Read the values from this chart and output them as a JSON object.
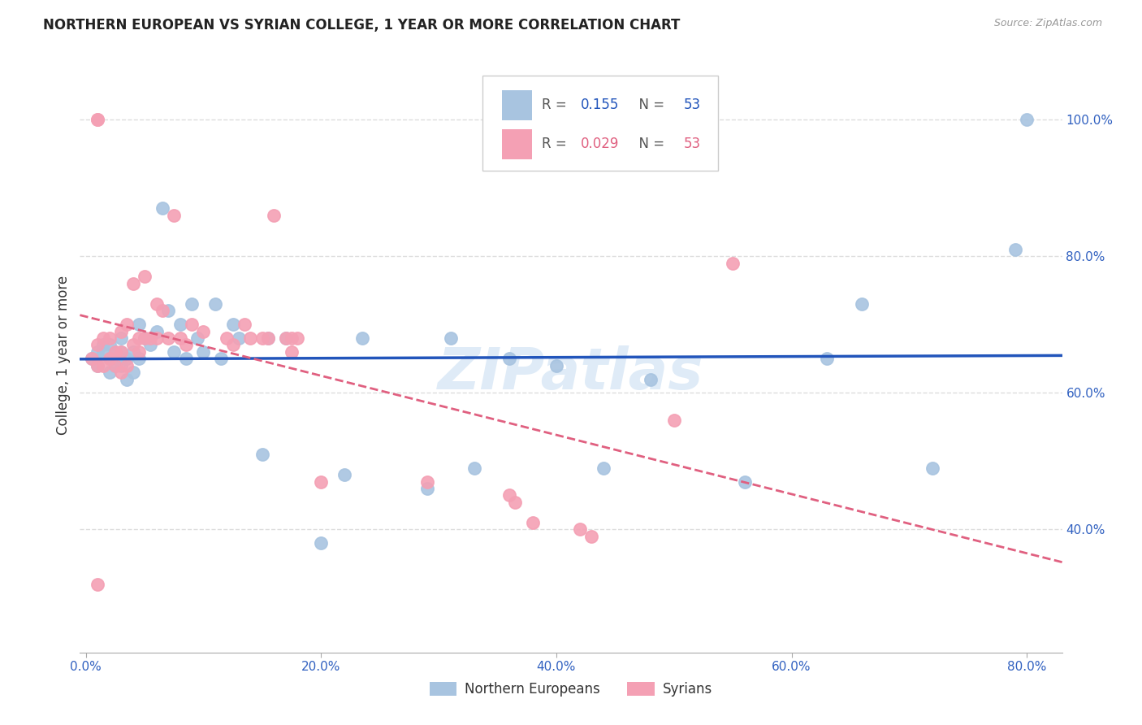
{
  "title": "NORTHERN EUROPEAN VS SYRIAN COLLEGE, 1 YEAR OR MORE CORRELATION CHART",
  "source": "Source: ZipAtlas.com",
  "xlabel_ticks": [
    "0.0%",
    "20.0%",
    "40.0%",
    "60.0%",
    "80.0%"
  ],
  "xlabel_tick_vals": [
    0.0,
    0.2,
    0.4,
    0.6,
    0.8
  ],
  "ylabel": "College, 1 year or more",
  "ylabel_ticks": [
    "40.0%",
    "60.0%",
    "80.0%",
    "100.0%"
  ],
  "ylabel_tick_vals": [
    0.4,
    0.6,
    0.8,
    1.0
  ],
  "xlim": [
    -0.005,
    0.83
  ],
  "ylim": [
    0.22,
    1.09
  ],
  "blue_color": "#a8c4e0",
  "pink_color": "#f4a0b4",
  "blue_line_color": "#2255bb",
  "pink_line_color": "#e06080",
  "R_blue": 0.155,
  "N_blue": 53,
  "R_pink": 0.029,
  "N_pink": 53,
  "legend_label_blue": "Northern Europeans",
  "legend_label_pink": "Syrians",
  "blue_x": [
    0.005,
    0.01,
    0.01,
    0.015,
    0.015,
    0.02,
    0.02,
    0.02,
    0.025,
    0.025,
    0.03,
    0.03,
    0.03,
    0.035,
    0.035,
    0.04,
    0.04,
    0.045,
    0.045,
    0.05,
    0.055,
    0.06,
    0.065,
    0.07,
    0.075,
    0.08,
    0.085,
    0.09,
    0.095,
    0.1,
    0.11,
    0.115,
    0.125,
    0.13,
    0.15,
    0.155,
    0.17,
    0.2,
    0.22,
    0.235,
    0.29,
    0.31,
    0.33,
    0.36,
    0.4,
    0.44,
    0.48,
    0.56,
    0.63,
    0.66,
    0.72,
    0.79,
    0.8
  ],
  "blue_y": [
    0.65,
    0.64,
    0.66,
    0.66,
    0.67,
    0.63,
    0.65,
    0.67,
    0.64,
    0.66,
    0.64,
    0.66,
    0.68,
    0.62,
    0.65,
    0.63,
    0.66,
    0.65,
    0.7,
    0.68,
    0.67,
    0.69,
    0.87,
    0.72,
    0.66,
    0.7,
    0.65,
    0.73,
    0.68,
    0.66,
    0.73,
    0.65,
    0.7,
    0.68,
    0.51,
    0.68,
    0.68,
    0.38,
    0.48,
    0.68,
    0.46,
    0.68,
    0.49,
    0.65,
    0.64,
    0.49,
    0.62,
    0.47,
    0.65,
    0.73,
    0.49,
    0.81,
    1.0
  ],
  "pink_x": [
    0.005,
    0.01,
    0.01,
    0.015,
    0.015,
    0.02,
    0.02,
    0.025,
    0.025,
    0.03,
    0.03,
    0.03,
    0.035,
    0.035,
    0.04,
    0.04,
    0.045,
    0.045,
    0.05,
    0.05,
    0.055,
    0.06,
    0.06,
    0.065,
    0.07,
    0.075,
    0.08,
    0.085,
    0.09,
    0.1,
    0.12,
    0.125,
    0.135,
    0.14,
    0.15,
    0.155,
    0.16,
    0.17,
    0.175,
    0.175,
    0.18,
    0.2,
    0.29,
    0.36,
    0.365,
    0.38,
    0.42,
    0.43,
    0.5,
    0.55,
    0.01,
    0.01,
    0.01
  ],
  "pink_y": [
    0.65,
    0.64,
    0.67,
    0.64,
    0.68,
    0.65,
    0.68,
    0.64,
    0.66,
    0.63,
    0.66,
    0.69,
    0.64,
    0.7,
    0.67,
    0.76,
    0.66,
    0.68,
    0.68,
    0.77,
    0.68,
    0.68,
    0.73,
    0.72,
    0.68,
    0.86,
    0.68,
    0.67,
    0.7,
    0.69,
    0.68,
    0.67,
    0.7,
    0.68,
    0.68,
    0.68,
    0.86,
    0.68,
    0.66,
    0.68,
    0.68,
    0.47,
    0.47,
    0.45,
    0.44,
    0.41,
    0.4,
    0.39,
    0.56,
    0.79,
    1.0,
    1.0,
    0.32
  ],
  "watermark": "ZIPatlas",
  "background_color": "#ffffff",
  "grid_color": "#dddddd"
}
